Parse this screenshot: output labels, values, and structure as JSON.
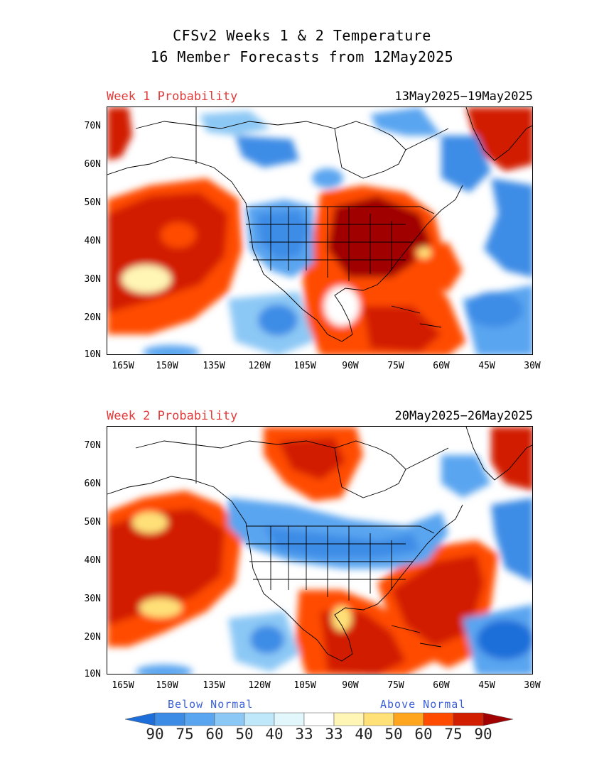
{
  "header": {
    "title_line1": "CFSv2 Weeks 1 & 2 Temperature",
    "title_line2": "16 Member Forecasts from 12May2025"
  },
  "panels": [
    {
      "label": "Week 1 Probability",
      "dates": "13May2025−19May2025"
    },
    {
      "label": "Week 2 Probability",
      "dates": "20May2025−26May2025"
    }
  ],
  "axes": {
    "lat_labels": [
      "70N",
      "60N",
      "50N",
      "40N",
      "30N",
      "20N",
      "10N"
    ],
    "lon_labels": [
      "165W",
      "150W",
      "135W",
      "120W",
      "105W",
      "90W",
      "75W",
      "60W",
      "45W",
      "30W"
    ]
  },
  "legend": {
    "below_label": "Below Normal",
    "above_label": "Above Normal",
    "values": [
      "90",
      "75",
      "60",
      "50",
      "40",
      "33",
      "33",
      "40",
      "50",
      "60",
      "75",
      "90"
    ],
    "colors": [
      "#1e6ed9",
      "#3c8ce6",
      "#5aa5f0",
      "#8cc8f5",
      "#bfe8fa",
      "#e1f7fb",
      "#ffffff",
      "#fff5b4",
      "#ffe178",
      "#ffa51e",
      "#ff4b00",
      "#d21e00",
      "#a00000"
    ],
    "arrow_left_color": "#1e6ed9",
    "arrow_right_color": "#a00000"
  }
}
